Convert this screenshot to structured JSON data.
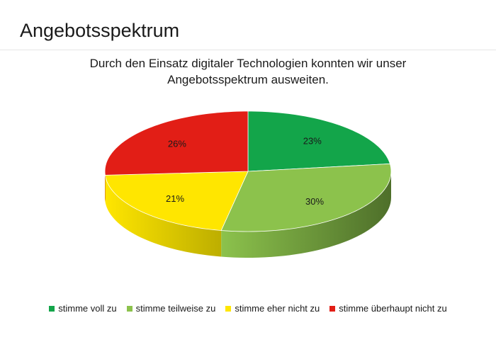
{
  "slide": {
    "title": "Angebotsspektrum"
  },
  "chart_data": {
    "type": "pie",
    "title_line1": "Durch den Einsatz digitaler Technologien konnten wir unser",
    "title_line2": "Angebotsspektrum ausweiten.",
    "categories": [
      "stimme voll zu",
      "stimme teilweise zu",
      "stimme eher nicht zu",
      "stimme überhaupt nicht zu"
    ],
    "values": [
      23,
      30,
      21,
      26
    ],
    "labels": [
      "23%",
      "30%",
      "21%",
      "26%"
    ],
    "colors": [
      "#13a54a",
      "#8cc24c",
      "#ffe600",
      "#e21e16"
    ],
    "side_colors": [
      "#0b6a2f",
      "#4e6f2a",
      "#bdae00",
      "#8f1510"
    ],
    "legend_position": "bottom",
    "style": "3d-pie"
  }
}
